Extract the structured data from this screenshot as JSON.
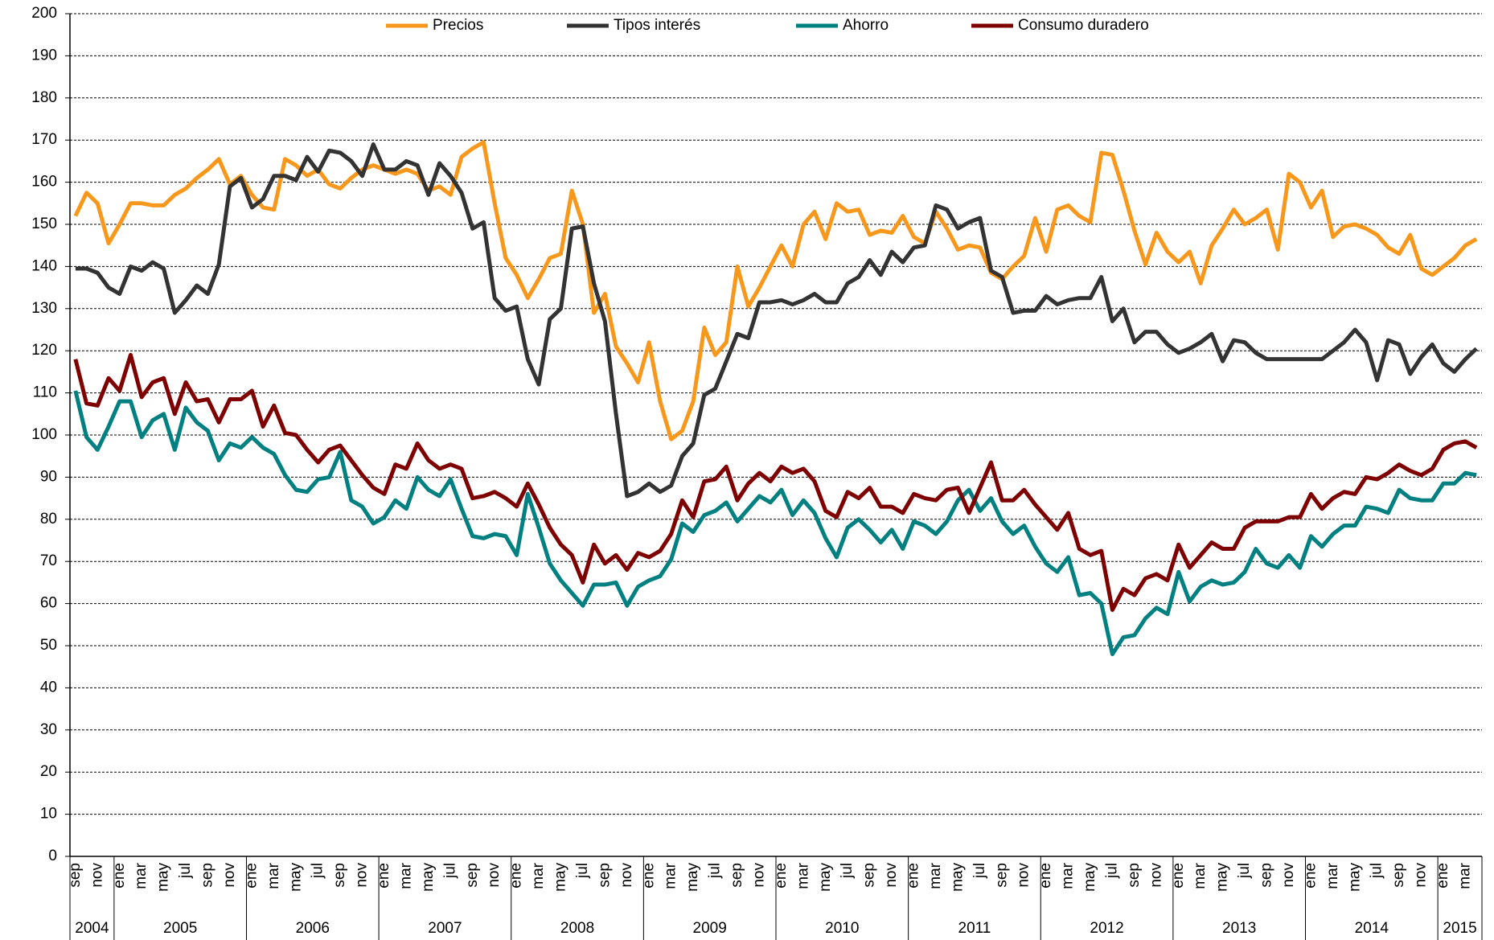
{
  "chart_data": {
    "type": "line",
    "categories": [
      "sep",
      null,
      "nov",
      null,
      "ene",
      null,
      "mar",
      null,
      "may",
      null,
      "jul",
      null,
      "sep",
      null,
      "nov",
      null,
      "ene",
      null,
      "mar",
      null,
      "may",
      null,
      "jul",
      null,
      "sep",
      null,
      "nov",
      null,
      "ene",
      null,
      "mar",
      null,
      "may",
      null,
      "jul",
      null,
      "sep",
      null,
      "nov",
      null,
      "ene",
      null,
      "mar",
      null,
      "may",
      null,
      "jul",
      null,
      "sep",
      null,
      "nov",
      null,
      "ene",
      null,
      "mar",
      null,
      "may",
      null,
      "jul",
      null,
      "sep",
      null,
      "nov",
      null,
      "ene",
      null,
      "mar",
      null,
      "may",
      null,
      "jul",
      null,
      "sep",
      null,
      "nov",
      null,
      "ene",
      null,
      "mar",
      null,
      "may",
      null,
      "jul",
      null,
      "sep",
      null,
      "nov",
      null,
      "ene",
      null,
      "mar",
      null,
      "may",
      null,
      "jul",
      null,
      "sep",
      null,
      "nov",
      null,
      "ene",
      null,
      "mar",
      null,
      "may",
      null,
      "jul",
      null,
      "sep",
      null,
      "nov",
      null,
      "ene",
      null,
      "mar",
      null,
      "may",
      null,
      "jul",
      null,
      "sep",
      null,
      "nov",
      null,
      "ene",
      null,
      "mar",
      null
    ],
    "years": [
      "2004",
      "2005",
      "2006",
      "2007",
      "2008",
      "2009",
      "2010",
      "2011",
      "2012",
      "2013",
      "2014",
      "2015"
    ],
    "series": [
      {
        "name": "Precios",
        "color": "#f7981d",
        "values": [
          152,
          157.5,
          155,
          145.5,
          150,
          155,
          155,
          154.5,
          154.5,
          157,
          158.5,
          161,
          163,
          165.5,
          159.5,
          161.5,
          157,
          154,
          153.5,
          165.5,
          164,
          161.5,
          163,
          159.5,
          158.5,
          161,
          163,
          164,
          163,
          162,
          163,
          162,
          158,
          159,
          157,
          166,
          168,
          169.5,
          155,
          142,
          138,
          132.5,
          137,
          142,
          143,
          158,
          150,
          129,
          133.5,
          121,
          117,
          112.5,
          122,
          108,
          99,
          101,
          108,
          125.5,
          119,
          122,
          140,
          130.5,
          135,
          140,
          145,
          140,
          150,
          153,
          146.5,
          155,
          153,
          153.5,
          147.5,
          148.5,
          148,
          152,
          147,
          145.5,
          153,
          149,
          144,
          145,
          144.5,
          138.5,
          137,
          140,
          142.5,
          151.5,
          143.5,
          153.5,
          154.5,
          152,
          150.5,
          167,
          166.5,
          158,
          148.5,
          140.5,
          148,
          143.5,
          141,
          143.5,
          136,
          145,
          149,
          153.5,
          150,
          151.5,
          153.5,
          144,
          162,
          160,
          154,
          158,
          147,
          149.5,
          150,
          149,
          147.5,
          144.5,
          143,
          147.5,
          139.5,
          138,
          140,
          142,
          145,
          146.5
        ]
      },
      {
        "name": "Tipos interés",
        "color": "#333333",
        "values": [
          139.5,
          139.5,
          138.5,
          135,
          133.5,
          140,
          139,
          141,
          139.5,
          129,
          132,
          135.5,
          133.5,
          140.5,
          159,
          161,
          154,
          156,
          161.5,
          161.5,
          160.5,
          166,
          162.5,
          167.5,
          167,
          165,
          161.5,
          169,
          163,
          163,
          165,
          164,
          157,
          164.5,
          161.5,
          157.5,
          149,
          150.5,
          132.5,
          129.5,
          130.5,
          118,
          112,
          127.5,
          130,
          149,
          149.5,
          136,
          127,
          105,
          85.5,
          86.5,
          88.5,
          86.5,
          88,
          95,
          98,
          109.5,
          111,
          117.5,
          124,
          123,
          131.5,
          131.5,
          132,
          131,
          132,
          133.5,
          131.5,
          131.5,
          136,
          137.5,
          141.5,
          138,
          143.5,
          141,
          144.5,
          145,
          154.5,
          153.5,
          149,
          150.5,
          151.5,
          139,
          137.5,
          129,
          129.5,
          129.5,
          133,
          131,
          132,
          132.5,
          132.5,
          137.5,
          127,
          130,
          122,
          124.5,
          124.5,
          121.5,
          119.5,
          120.5,
          122,
          124,
          117.5,
          122.5,
          122,
          119.5,
          118,
          118,
          118,
          118,
          118,
          118,
          120,
          122,
          125,
          122,
          113,
          122.5,
          121.5,
          114.5,
          118.5,
          121.5,
          117,
          115,
          118,
          120.5
        ]
      },
      {
        "name": "Ahorro",
        "color": "#008080",
        "values": [
          110.5,
          99.5,
          96.5,
          102,
          108,
          108,
          99.5,
          103.5,
          105,
          96.5,
          106.5,
          103,
          101,
          94,
          98,
          97,
          99.5,
          97,
          95.5,
          90.5,
          87,
          86.5,
          89.5,
          90,
          96,
          84.5,
          83,
          79,
          80.5,
          84.5,
          82.5,
          90,
          87,
          85.5,
          89.5,
          82.5,
          76,
          75.5,
          76.5,
          76,
          71.5,
          86,
          78,
          69.5,
          65.5,
          62.5,
          59.5,
          64.5,
          64.5,
          65,
          59.5,
          64,
          65.5,
          66.5,
          70.5,
          79,
          77,
          81,
          82,
          84,
          79.5,
          82.5,
          85.5,
          84,
          87,
          81,
          84.5,
          81.5,
          75.5,
          71,
          78,
          80,
          77.5,
          74.5,
          77.5,
          73,
          79.5,
          78.5,
          76.5,
          79.5,
          84.5,
          87,
          82,
          85,
          79.5,
          76.5,
          78.5,
          73.5,
          69.5,
          67.5,
          71,
          62,
          62.5,
          60,
          48,
          52,
          52.5,
          56.5,
          59,
          57.5,
          67.5,
          60.5,
          64,
          65.5,
          64.5,
          65,
          67.5,
          73,
          69.5,
          68.5,
          71.5,
          68.5,
          76,
          73.5,
          76.5,
          78.5,
          78.5,
          83,
          82.5,
          81.5,
          87,
          85,
          84.5,
          84.5,
          88.5,
          88.5,
          91,
          90.5
        ]
      },
      {
        "name": "Consumo duradero",
        "color": "#7f0000",
        "values": [
          118,
          107.5,
          107,
          113.5,
          110.5,
          119,
          109,
          112.5,
          113.5,
          105,
          112.5,
          108,
          108.5,
          103,
          108.5,
          108.5,
          110.5,
          102,
          107,
          100.5,
          100,
          96.5,
          93.5,
          96.5,
          97.5,
          94,
          90.5,
          87.5,
          86,
          93,
          92,
          98,
          94,
          92,
          93,
          92,
          85,
          85.5,
          86.5,
          85,
          83,
          88.5,
          83.5,
          78,
          74,
          71.5,
          65,
          74,
          69.5,
          71.5,
          68,
          72,
          71,
          72.5,
          76.5,
          84.5,
          80.5,
          89,
          89.5,
          92.5,
          84.5,
          88.5,
          91,
          89,
          92.5,
          91,
          92,
          89,
          82,
          80.5,
          86.5,
          85,
          87.5,
          83,
          83,
          81.5,
          86,
          85,
          84.5,
          87,
          87.5,
          81.5,
          87.5,
          93.5,
          84.5,
          84.5,
          87,
          83.5,
          80.5,
          77.5,
          81.5,
          73,
          71.5,
          72.5,
          58.5,
          63.5,
          62,
          66,
          67,
          65.5,
          74,
          68.5,
          71.5,
          74.5,
          73,
          73,
          78,
          79.5,
          79.5,
          79.5,
          80.5,
          80.5,
          86,
          82.5,
          85,
          86.5,
          86,
          90,
          89.5,
          91,
          93,
          91.5,
          90.5,
          92,
          96.5,
          98,
          98.5,
          97
        ]
      }
    ],
    "ylim": [
      0,
      200
    ],
    "yticks": [
      0,
      10,
      20,
      30,
      40,
      50,
      60,
      70,
      80,
      90,
      100,
      110,
      120,
      130,
      140,
      150,
      160,
      170,
      180,
      190,
      200
    ],
    "grid": true,
    "legend": "top"
  }
}
